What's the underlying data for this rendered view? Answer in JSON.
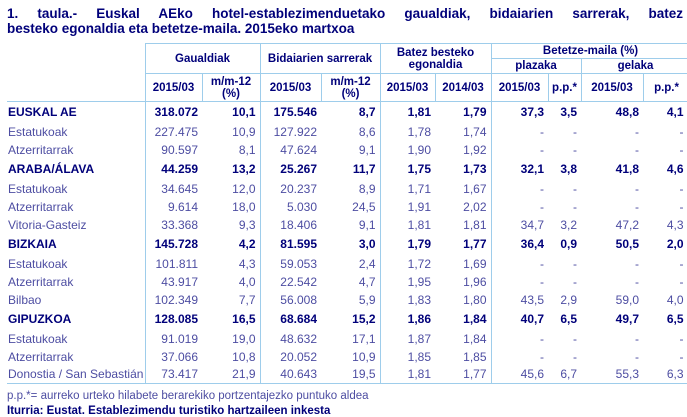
{
  "title": {
    "line1": "1. taula.- Euskal AEko hotel-establezimenduetako gaualdiak, bidaiarien sarrerak, batez",
    "line2": "besteko egonaldia eta betetze-maila. 2015eko martxoa"
  },
  "colors": {
    "text_bold": "#00007a",
    "text_regular": "#4d4da2",
    "table_border": "#9ecdeb",
    "background": "#ffffff"
  },
  "table": {
    "header": {
      "groups": {
        "gaualdiak": "Gaualdiak",
        "bidaiarien": "Bidaiarien sarrerak",
        "egonaldia": "Batez besteko egonaldia",
        "betetze": "Betetze-maila (%)",
        "plazaka": "plazaka",
        "gelaka": "gelaka"
      },
      "years": [
        "2015/03",
        "m/m-12 (%)",
        "2015/03",
        "m/m-12 (%)",
        "2015/03",
        "2014/03",
        "2015/03",
        "p.p.*",
        "2015/03",
        "p.p.*"
      ]
    },
    "rows": [
      {
        "label": "EUSKAL AE",
        "bold": true,
        "values": [
          "318.072",
          "10,1",
          "175.546",
          "8,7",
          "1,81",
          "1,79",
          "37,3",
          "3,5",
          "48,8",
          "4,1"
        ]
      },
      {
        "label": "Estatukoak",
        "bold": false,
        "values": [
          "227.475",
          "10,9",
          "127.922",
          "8,6",
          "1,78",
          "1,74",
          "-",
          "-",
          "-",
          "-"
        ]
      },
      {
        "label": "Atzerritarrak",
        "bold": false,
        "values": [
          "90.597",
          "8,1",
          "47.624",
          "9,1",
          "1,90",
          "1,92",
          "-",
          "-",
          "-",
          "-"
        ]
      },
      {
        "label": "ARABA/ÁLAVA",
        "bold": true,
        "values": [
          "44.259",
          "13,2",
          "25.267",
          "11,7",
          "1,75",
          "1,73",
          "32,1",
          "3,8",
          "41,8",
          "4,6"
        ]
      },
      {
        "label": "Estatukoak",
        "bold": false,
        "values": [
          "34.645",
          "12,0",
          "20.237",
          "8,9",
          "1,71",
          "1,67",
          "-",
          "-",
          "-",
          "-"
        ]
      },
      {
        "label": "Atzerritarrak",
        "bold": false,
        "values": [
          "9.614",
          "18,0",
          "5.030",
          "24,5",
          "1,91",
          "2,02",
          "-",
          "-",
          "-",
          "-"
        ]
      },
      {
        "label": "Vitoria-Gasteiz",
        "bold": false,
        "values": [
          "33.368",
          "9,3",
          "18.406",
          "9,1",
          "1,81",
          "1,81",
          "34,7",
          "3,2",
          "47,2",
          "4,3"
        ]
      },
      {
        "label": "BIZKAIA",
        "bold": true,
        "values": [
          "145.728",
          "4,2",
          "81.595",
          "3,0",
          "1,79",
          "1,77",
          "36,4",
          "0,9",
          "50,5",
          "2,0"
        ]
      },
      {
        "label": "Estatukoak",
        "bold": false,
        "values": [
          "101.811",
          "4,3",
          "59.053",
          "2,4",
          "1,72",
          "1,69",
          "-",
          "-",
          "-",
          "-"
        ]
      },
      {
        "label": "Atzerritarrak",
        "bold": false,
        "values": [
          "43.917",
          "4,0",
          "22.542",
          "4,7",
          "1,95",
          "1,96",
          "-",
          "-",
          "-",
          "-"
        ]
      },
      {
        "label": "Bilbao",
        "bold": false,
        "values": [
          "102.349",
          "7,7",
          "56.008",
          "5,9",
          "1,83",
          "1,80",
          "43,5",
          "2,9",
          "59,0",
          "4,0"
        ]
      },
      {
        "label": "GIPUZKOA",
        "bold": true,
        "values": [
          "128.085",
          "16,5",
          "68.684",
          "15,2",
          "1,86",
          "1,84",
          "40,7",
          "6,5",
          "49,7",
          "6,5"
        ]
      },
      {
        "label": "Estatukoak",
        "bold": false,
        "values": [
          "91.019",
          "19,0",
          "48.632",
          "17,1",
          "1,87",
          "1,84",
          "-",
          "-",
          "-",
          "-"
        ]
      },
      {
        "label": "Atzerritarrak",
        "bold": false,
        "values": [
          "37.066",
          "10,8",
          "20.052",
          "10,9",
          "1,85",
          "1,85",
          "-",
          "-",
          "-",
          "-"
        ]
      },
      {
        "label": "Donostia / San Sebastián",
        "bold": false,
        "values": [
          "73.417",
          "21,9",
          "40.643",
          "19,5",
          "1,81",
          "1,77",
          "45,6",
          "6,7",
          "55,3",
          "6,3"
        ]
      }
    ]
  },
  "footnotes": {
    "pp": "p.p.*= aurreko urteko hilabete berarekiko portzentajezko puntuko aldea",
    "source": "Iturria: Eustat. Establezimendu turistiko hartzaileen inkesta"
  }
}
